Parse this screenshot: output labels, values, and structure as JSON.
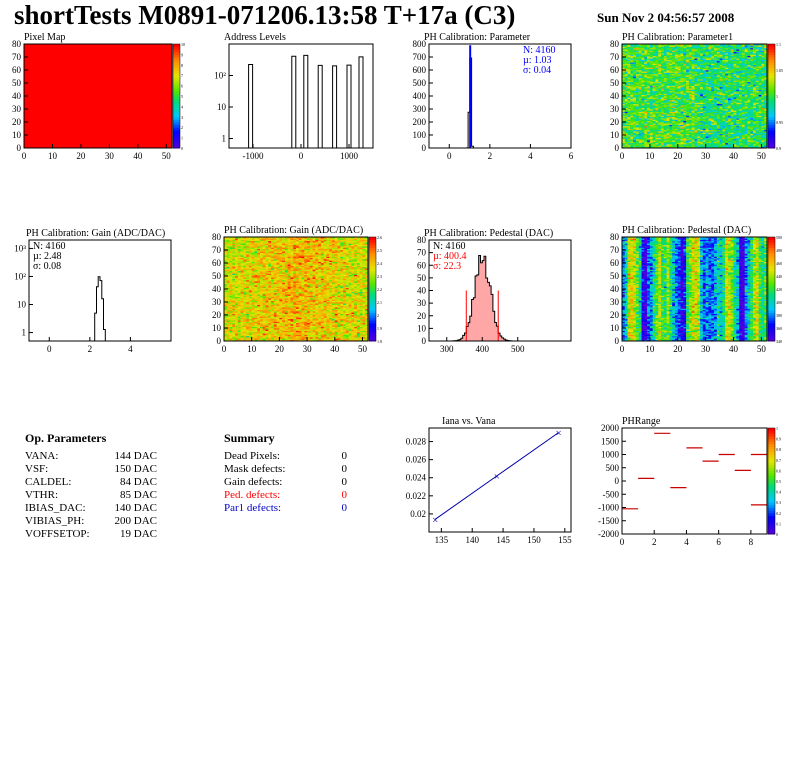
{
  "header": {
    "title": "shortTests M0891-071206.13:58 T+17a (C3)",
    "date": "Sun Nov  2 04:56:57 2008"
  },
  "chart_data": [
    {
      "id": "pixel-map",
      "type": "heatmap",
      "title": "Pixel Map",
      "xlim": [
        0,
        52
      ],
      "ylim": [
        0,
        80
      ],
      "xticks": [
        "0",
        "10",
        "20",
        "30",
        "40",
        "50"
      ],
      "yticks": [
        "0",
        "10",
        "20",
        "30",
        "40",
        "50",
        "60",
        "70",
        "80"
      ],
      "fill_color": "#ff0000",
      "zticks": [
        "0",
        "1",
        "2",
        "3",
        "4",
        "5",
        "6",
        "7",
        "8",
        "9",
        "10"
      ]
    },
    {
      "id": "address-levels",
      "type": "line",
      "title": "Address Levels",
      "xlim": [
        -1500,
        1500
      ],
      "ylog": true,
      "ylim": [
        0.5,
        1000
      ],
      "xticks": [
        "-1000",
        "0",
        "1000"
      ],
      "yticks": [
        "1",
        "10",
        "10²"
      ],
      "peaks": [
        -1050,
        -150,
        100,
        400,
        700,
        1000,
        1250
      ]
    },
    {
      "id": "ph-cal-parameter",
      "type": "line",
      "title": "PH Calibration: Parameter",
      "xlim": [
        -1,
        6
      ],
      "ylim": [
        0,
        800
      ],
      "xticks": [
        "0",
        "2",
        "4",
        "6"
      ],
      "yticks": [
        "0",
        "100",
        "200",
        "300",
        "400",
        "500",
        "600",
        "700",
        "800"
      ],
      "stats": {
        "n": "N: 4160",
        "mu": "µ: 1.03",
        "sigma": "σ: 0.04"
      },
      "stats_color": "#0000ff",
      "mean": 1.03,
      "sd": 0.04,
      "peak": 790
    },
    {
      "id": "ph-cal-parameter1",
      "type": "heatmap",
      "title": "PH Calibration: Parameter1",
      "xlim": [
        0,
        52
      ],
      "ylim": [
        0,
        80
      ],
      "xticks": [
        "0",
        "10",
        "20",
        "30",
        "40",
        "50"
      ],
      "yticks": [
        "0",
        "10",
        "20",
        "30",
        "40",
        "50",
        "60",
        "70",
        "80"
      ],
      "zticks": [
        "0.9",
        "0.95",
        "1",
        "1.05",
        "1.1"
      ]
    },
    {
      "id": "ph-cal-gain-hist",
      "type": "line",
      "title": "PH Calibration: Gain (ADC/DAC)",
      "xlim": [
        -1,
        6
      ],
      "ylog": true,
      "ylim": [
        0.5,
        2000
      ],
      "xticks": [
        "0",
        "2",
        "4"
      ],
      "yticks": [
        "1",
        "10",
        "10²",
        "10³"
      ],
      "stats": {
        "n": "N: 4160",
        "mu": "µ: 2.48",
        "sigma": "σ: 0.08"
      },
      "stats_color": "#000000",
      "mean": 2.48,
      "sd": 0.08,
      "peak": 100
    },
    {
      "id": "ph-cal-gain-map",
      "type": "heatmap",
      "title": "PH Calibration: Gain (ADC/DAC)",
      "xlim": [
        0,
        52
      ],
      "ylim": [
        0,
        80
      ],
      "xticks": [
        "0",
        "10",
        "20",
        "30",
        "40",
        "50"
      ],
      "yticks": [
        "0",
        "10",
        "20",
        "30",
        "40",
        "50",
        "60",
        "70",
        "80"
      ],
      "zticks": [
        "1.8",
        "1.9",
        "2",
        "2.1",
        "2.2",
        "2.3",
        "2.4",
        "2.5",
        "2.6"
      ]
    },
    {
      "id": "ph-cal-pedestal-hist",
      "type": "line",
      "title": "PH Calibration: Pedestal (DAC)",
      "xlim": [
        250,
        650
      ],
      "ylim": [
        0,
        80
      ],
      "xticks": [
        "300",
        "400",
        "500"
      ],
      "yticks": [
        "0",
        "10",
        "20",
        "30",
        "40",
        "50",
        "60",
        "70",
        "80"
      ],
      "stats": {
        "n": "N: 4160",
        "mu": "µ: 400.4",
        "sigma": "σ: 22.3"
      },
      "stats_color": "#ff0000",
      "mean": 400.4,
      "sd": 22.3,
      "peak": 68,
      "cut_lines": [
        355,
        445
      ]
    },
    {
      "id": "ph-cal-pedestal-map",
      "type": "heatmap",
      "title": "PH Calibration: Pedestal (DAC)",
      "xlim": [
        0,
        52
      ],
      "ylim": [
        0,
        80
      ],
      "xticks": [
        "0",
        "10",
        "20",
        "30",
        "40",
        "50"
      ],
      "yticks": [
        "0",
        "10",
        "20",
        "30",
        "40",
        "50",
        "60",
        "70",
        "80"
      ],
      "zticks": [
        "340",
        "360",
        "380",
        "400",
        "420",
        "440",
        "460",
        "480",
        "500"
      ]
    },
    {
      "id": "iana-vs-vana",
      "type": "line",
      "title": "Iana vs. Vana",
      "xlim": [
        133,
        156
      ],
      "ylim": [
        0.018,
        0.0295
      ],
      "xticks": [
        "135",
        "140",
        "145",
        "150",
        "155"
      ],
      "yticks": [
        "0.02",
        "0.022",
        "0.024",
        "0.026",
        "0.028"
      ],
      "x": [
        134,
        144,
        154
      ],
      "y": [
        0.0194,
        0.0242,
        0.029
      ],
      "line_color": "#0000aa"
    },
    {
      "id": "phrange",
      "type": "heatmap",
      "title": "PHRange",
      "xlim": [
        0,
        9
      ],
      "ylim": [
        -2000,
        2000
      ],
      "xticks": [
        "0",
        "2",
        "4",
        "6",
        "8"
      ],
      "yticks": [
        "-2000",
        "-1500",
        "-1000",
        "-500",
        "0",
        "500",
        "1000",
        "1500",
        "2000"
      ],
      "zticks": [
        "0",
        "0.1",
        "0.2",
        "0.3",
        "0.4",
        "0.5",
        "0.6",
        "0.7",
        "0.8",
        "0.9",
        "1"
      ],
      "segments": [
        [
          0,
          -1050
        ],
        [
          1,
          100
        ],
        [
          2,
          1800
        ],
        [
          3,
          -250
        ],
        [
          4,
          1250
        ],
        [
          5,
          750
        ],
        [
          6,
          1000
        ],
        [
          7,
          400
        ],
        [
          8,
          1000
        ],
        [
          8,
          -900
        ]
      ]
    }
  ],
  "op_parameters": {
    "title": "Op. Parameters",
    "rows": [
      {
        "name": "VANA:",
        "value": "144 DAC"
      },
      {
        "name": "VSF:",
        "value": "150 DAC"
      },
      {
        "name": "CALDEL:",
        "value": "84 DAC"
      },
      {
        "name": "VTHR:",
        "value": "85 DAC"
      },
      {
        "name": "IBIAS_DAC:",
        "value": "140 DAC"
      },
      {
        "name": "VIBIAS_PH:",
        "value": "200 DAC"
      },
      {
        "name": "VOFFSETOP:",
        "value": "19 DAC"
      }
    ]
  },
  "summary": {
    "title": "Summary",
    "rows": [
      {
        "name": "Dead Pixels:",
        "value": "0",
        "color": "#000000"
      },
      {
        "name": "Mask defects:",
        "value": "0",
        "color": "#000000"
      },
      {
        "name": "Gain defects:",
        "value": "0",
        "color": "#000000"
      },
      {
        "name": "Ped. defects:",
        "value": "0",
        "color": "#ff0000"
      },
      {
        "name": "Par1 defects:",
        "value": "0",
        "color": "#0000cc"
      }
    ]
  }
}
